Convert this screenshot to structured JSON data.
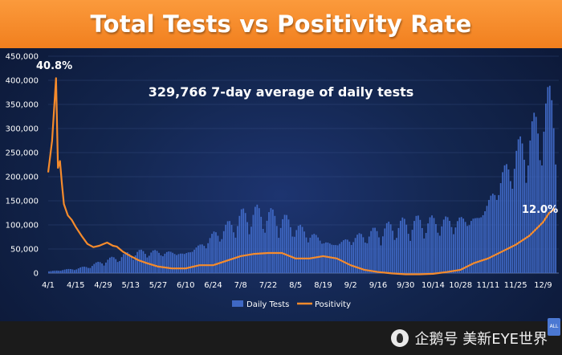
{
  "chart_data": {
    "type": "bar",
    "title": "Total Tests vs Positivity Rate",
    "annotation": "329,766 7-day average of daily tests",
    "start_label": "40.8%",
    "end_label": "12.0%",
    "ylim": [
      0,
      450000
    ],
    "y_ticks": [
      "0",
      "50,000",
      "100,000",
      "150,000",
      "200,000",
      "250,000",
      "300,000",
      "350,000",
      "400,000",
      "450,000"
    ],
    "x_ticks": [
      "4/1",
      "4/15",
      "4/29",
      "5/13",
      "5/27",
      "6/10",
      "6/24",
      "7/8",
      "7/22",
      "8/5",
      "8/19",
      "9/2",
      "9/16",
      "9/30",
      "10/14",
      "10/28",
      "11/11",
      "11/25",
      "12/9"
    ],
    "legend": [
      "Daily Tests",
      "Positivity"
    ],
    "colors": {
      "bars": "#3f68c4",
      "line": "#f58b2c",
      "title_bar": "#f58a26"
    },
    "series": [
      {
        "name": "Daily Tests",
        "type": "bar",
        "x": [
          0,
          7,
          14,
          21,
          28,
          35,
          42,
          49,
          56,
          63,
          70,
          77,
          84,
          91,
          98,
          105,
          112,
          119,
          126,
          133,
          140,
          147,
          154,
          161,
          168,
          175,
          182,
          189,
          196,
          203,
          210,
          217,
          224,
          231,
          238,
          245,
          252,
          255,
          258
        ],
        "y": [
          5000,
          8000,
          10000,
          15000,
          25000,
          32000,
          42000,
          48000,
          52000,
          58000,
          65000,
          75000,
          92000,
          102000,
          118000,
          122000,
          118000,
          115000,
          105000,
          100000,
          95000,
          92000,
          92000,
          90000,
          92000,
          96000,
          100000,
          105000,
          110000,
          120000,
          138000,
          165000,
          215000,
          250000,
          275000,
          290000,
          320000,
          340000,
          360000
        ]
      },
      {
        "name": "Positivity",
        "type": "line",
        "x": [
          0,
          2,
          4,
          5,
          6,
          7,
          8,
          10,
          12,
          14,
          17,
          20,
          23,
          26,
          30,
          33,
          35,
          38,
          42,
          46,
          50,
          56,
          63,
          70,
          77,
          84,
          91,
          98,
          105,
          112,
          119,
          126,
          133,
          140,
          147,
          154,
          161,
          168,
          175,
          182,
          189,
          196,
          203,
          210,
          217,
          224,
          231,
          238,
          245,
          252,
          255,
          258
        ],
        "y": [
          20.0,
          27.0,
          40.8,
          21.0,
          22.5,
          17.5,
          13.0,
          10.5,
          9.5,
          8.0,
          6.0,
          4.2,
          3.5,
          3.8,
          4.5,
          3.8,
          3.6,
          2.5,
          1.5,
          0.6,
          0.0,
          -0.8,
          -1.2,
          -1.2,
          -0.5,
          -0.5,
          0.5,
          1.5,
          2.0,
          2.2,
          2.2,
          1.0,
          1.0,
          1.5,
          1.0,
          -0.5,
          -1.5,
          -2.0,
          -2.3,
          -2.5,
          -2.5,
          -2.4,
          -2.0,
          -1.5,
          0.0,
          1.0,
          2.5,
          4.0,
          6.0,
          9.0,
          11.0,
          12.0
        ]
      }
    ]
  },
  "watermark": "企鹅号 美新EYE世界",
  "badge": "ALL"
}
